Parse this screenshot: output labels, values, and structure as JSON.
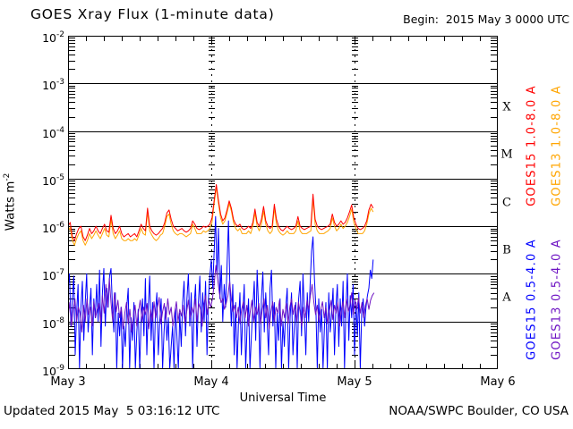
{
  "header": {
    "title": "GOES Xray Flux (1-minute data)",
    "begin": "Begin:  2015 May 3 0000 UTC"
  },
  "footer": {
    "updated": "Updated 2015 May  5 03:16:12 UTC",
    "source": "NOAA/SWPC Boulder, CO USA"
  },
  "chart_data": {
    "type": "line",
    "title": "GOES Xray Flux (1-minute data)",
    "xlabel": "Universal Time",
    "ylabel_base": "Watts m",
    "ylabel_exp": "-2",
    "y_scale": "log",
    "y_range": [
      1e-09,
      0.01
    ],
    "y_tick_exponents": [
      "-2",
      "-3",
      "-4",
      "-5",
      "-6",
      "-7",
      "-8",
      "-9"
    ],
    "x_range_days": 3,
    "x_tick_labels": [
      "May 3",
      "May 4",
      "May 5",
      "May 6"
    ],
    "x_minor_ticks_per_day": 8,
    "grid": {
      "horizontal": "solid-per-decade",
      "vertical": "dotted-per-day"
    },
    "flare_classes": [
      {
        "letter": "X",
        "band_top_exponent": -3
      },
      {
        "letter": "M",
        "band_top_exponent": -4
      },
      {
        "letter": "C",
        "band_top_exponent": -5
      },
      {
        "letter": "B",
        "band_top_exponent": -6
      },
      {
        "letter": "A",
        "band_top_exponent": -7
      }
    ],
    "legend": [
      {
        "label": "GOES15 1.0-8.0 A",
        "color": "#ff0000"
      },
      {
        "label": "GOES13 1.0-8.0 A",
        "color": "#ffa500"
      },
      {
        "label": "GOES15 0.5-4.0 A",
        "color": "#0000ff"
      },
      {
        "label": "GOES13 0.5-4.0 A",
        "color": "#6e14c3"
      }
    ],
    "series": [
      {
        "name": "GOES15 1.0-8.0 A",
        "color": "#ff0000",
        "t0": 0,
        "dt": 0.015,
        "values": [
          1e-06,
          1.2e-06,
          6e-07,
          5e-07,
          7e-07,
          9e-07,
          1e-06,
          6e-07,
          5e-07,
          6.5e-07,
          9e-07,
          7e-07,
          8e-07,
          1e-06,
          8e-07,
          7e-07,
          9e-07,
          1.1e-06,
          8e-07,
          7.5e-07,
          1.7e-06,
          9e-07,
          7e-07,
          8e-07,
          1e-06,
          7e-07,
          6e-07,
          6.5e-07,
          7e-07,
          6e-07,
          6.5e-07,
          7e-07,
          6e-07,
          8e-07,
          1.1e-06,
          9e-07,
          8e-07,
          2.4e-06,
          1e-06,
          8e-07,
          7e-07,
          6.5e-07,
          7e-07,
          8e-07,
          9e-07,
          1.2e-06,
          1.9e-06,
          2.2e-06,
          1.4e-06,
          1e-06,
          9e-07,
          8e-07,
          8.5e-07,
          9e-07,
          8e-07,
          7.5e-07,
          8e-07,
          9e-07,
          1.3e-06,
          1.1e-06,
          9e-07,
          8.5e-07,
          9e-07,
          1e-06,
          9.5e-07,
          1e-06,
          1.1e-06,
          1.5e-06,
          3.5e-06,
          7.5e-06,
          3.5e-06,
          1.8e-06,
          1.3e-06,
          1.5e-06,
          2.2e-06,
          3.4e-06,
          2.4e-06,
          1.4e-06,
          1.1e-06,
          1e-06,
          1.1e-06,
          9e-07,
          8.5e-07,
          9e-07,
          1e-06,
          9e-07,
          1.2e-06,
          2.3e-06,
          1.2e-06,
          1e-06,
          1.4e-06,
          2.6e-06,
          1.3e-06,
          1e-06,
          9e-07,
          1e-06,
          2.9e-06,
          1.4e-06,
          1e-06,
          8.5e-07,
          8e-07,
          9e-07,
          1e-06,
          9e-07,
          8.5e-07,
          9e-07,
          1e-06,
          1.6e-06,
          1e-06,
          9e-07,
          8.5e-07,
          9e-07,
          9.5e-07,
          1e-06,
          4.7e-06,
          1.4e-06,
          1e-06,
          9e-07,
          8.5e-07,
          9e-07,
          9.5e-07,
          1e-06,
          1.1e-06,
          1.8e-06,
          1.2e-06,
          1e-06,
          1.1e-06,
          1.3e-06,
          1.1e-06,
          1.2e-06,
          1.5e-06,
          2e-06,
          2.8e-06,
          1.5e-06,
          1.1e-06,
          9e-07,
          8.5e-07,
          9e-07,
          1e-06,
          1.3e-06,
          2.2e-06,
          2.9e-06,
          2.4e-06
        ]
      },
      {
        "name": "GOES13 1.0-8.0 A",
        "color": "#ffa500",
        "t0": 0,
        "dt": 0.015,
        "values": [
          8e-07,
          9.5e-07,
          5e-07,
          4e-07,
          5.5e-07,
          7e-07,
          8e-07,
          5e-07,
          4e-07,
          5e-07,
          7e-07,
          5.5e-07,
          6.5e-07,
          8e-07,
          6.5e-07,
          5.5e-07,
          7e-07,
          9e-07,
          6.5e-07,
          6e-07,
          1.4e-06,
          7e-07,
          5.5e-07,
          6.5e-07,
          8e-07,
          5.5e-07,
          5e-07,
          5e-07,
          5.5e-07,
          5e-07,
          5e-07,
          5.5e-07,
          5e-07,
          6.5e-07,
          9e-07,
          7e-07,
          6.5e-07,
          2e-06,
          8e-07,
          6.5e-07,
          5.5e-07,
          5e-07,
          5.5e-07,
          6.5e-07,
          7e-07,
          1e-06,
          1.6e-06,
          1.8e-06,
          1.1e-06,
          8e-07,
          7e-07,
          6.5e-07,
          7e-07,
          7e-07,
          6.5e-07,
          6e-07,
          6.5e-07,
          7e-07,
          1.1e-06,
          9e-07,
          7e-07,
          7e-07,
          7e-07,
          8e-07,
          7.5e-07,
          8e-07,
          9e-07,
          1.2e-06,
          3e-06,
          6.6e-06,
          3e-06,
          1.5e-06,
          1.1e-06,
          1.3e-06,
          1.9e-06,
          3e-06,
          2.1e-06,
          1.2e-06,
          9e-07,
          8e-07,
          9e-07,
          7e-07,
          7e-07,
          7e-07,
          8e-07,
          7e-07,
          1e-06,
          1.9e-06,
          1e-06,
          8e-07,
          1.1e-06,
          2.1e-06,
          1.1e-06,
          8e-07,
          7e-07,
          8e-07,
          2.4e-06,
          1.1e-06,
          8e-07,
          7e-07,
          6.5e-07,
          7e-07,
          8e-07,
          7e-07,
          7e-07,
          7e-07,
          8e-07,
          1.3e-06,
          8e-07,
          7e-07,
          7e-07,
          7e-07,
          7.5e-07,
          8e-07,
          3.8e-06,
          1.1e-06,
          8e-07,
          7e-07,
          7e-07,
          7e-07,
          7.5e-07,
          8e-07,
          9e-07,
          1.5e-06,
          1e-06,
          8e-07,
          9e-07,
          1.1e-06,
          9e-07,
          1e-06,
          1.2e-06,
          1.6e-06,
          2.3e-06,
          1.2e-06,
          9e-07,
          7e-07,
          7e-07,
          7e-07,
          8e-07,
          1.1e-06,
          1.8e-06,
          2.4e-06,
          2e-06
        ]
      },
      {
        "name": "GOES15 0.5-4.0 A",
        "color": "#0000ff",
        "t0": 0,
        "dt": 0.01,
        "values": [
          5e-08,
          1e-07,
          8e-09,
          3e-08,
          9e-08,
          2e-09,
          1.5e-08,
          6e-08,
          1e-09,
          2e-08,
          7e-08,
          4e-09,
          2.5e-08,
          1e-07,
          6e-09,
          1.8e-08,
          5e-08,
          2e-09,
          3e-08,
          1.2e-08,
          6e-08,
          1e-08,
          1.2e-07,
          3e-09,
          4e-08,
          1.3e-07,
          8e-09,
          5e-08,
          2e-08,
          9e-08,
          1.3e-07,
          2e-08,
          6e-09,
          4e-08,
          1e-09,
          1.5e-08,
          5e-09,
          2e-08,
          1e-09,
          8e-09,
          3e-09,
          2e-08,
          5e-08,
          1e-09,
          1.2e-08,
          4e-09,
          2.5e-08,
          1e-09,
          6e-09,
          1.8e-08,
          1e-09,
          1e-08,
          3e-08,
          5e-09,
          8e-08,
          2e-09,
          2e-08,
          9e-08,
          4e-09,
          2.5e-08,
          1e-09,
          1.5e-08,
          4e-08,
          2e-09,
          1e-08,
          3e-08,
          1e-09,
          6e-09,
          2e-08,
          4e-09,
          1.2e-08,
          1e-09,
          3e-09,
          8e-09,
          1e-09,
          2e-08,
          5e-09,
          1e-09,
          1.5e-08,
          3e-09,
          2.5e-08,
          7e-08,
          5e-09,
          3e-08,
          1e-07,
          8e-09,
          4e-08,
          1e-09,
          2e-08,
          6e-08,
          3e-09,
          2.5e-08,
          9e-08,
          6e-09,
          4e-08,
          1e-08,
          7e-08,
          2e-09,
          3e-08,
          9e-08,
          2e-07,
          5e-08,
          3e-07,
          1.6e-06,
          1e-07,
          9e-07,
          3e-08,
          1.5e-07,
          1e-08,
          6e-08,
          2e-08,
          1.5e-07,
          1.3e-06,
          5e-08,
          8e-09,
          6e-08,
          2e-09,
          2.5e-08,
          1e-09,
          1e-08,
          4e-08,
          2e-09,
          1.5e-08,
          6e-08,
          1e-09,
          8e-09,
          3e-08,
          1e-09,
          5e-09,
          2e-08,
          7e-08,
          4e-09,
          1.2e-07,
          2e-08,
          1e-09,
          3e-08,
          1.1e-07,
          6e-09,
          4e-08,
          1e-08,
          2e-09,
          5e-08,
          1.2e-07,
          8e-09,
          2.5e-08,
          1e-09,
          1.5e-08,
          4e-09,
          3e-08,
          1e-09,
          1e-08,
          3e-09,
          2e-08,
          5e-08,
          1e-09,
          1.2e-08,
          4e-08,
          2e-09,
          8e-09,
          2.5e-08,
          1e-09,
          3e-08,
          7e-08,
          5e-09,
          1e-07,
          1.5e-08,
          2e-09,
          4e-08,
          1e-08,
          6e-08,
          3e-07,
          6e-07,
          8e-08,
          2e-08,
          1e-09,
          3e-08,
          6e-09,
          1.8e-08,
          1e-09,
          8e-09,
          2.5e-08,
          1e-09,
          4e-08,
          6e-09,
          1.5e-08,
          5e-08,
          2e-09,
          2e-08,
          6e-08,
          3e-09,
          3e-08,
          8e-09,
          7e-08,
          1e-09,
          2e-08,
          1e-07,
          4e-09,
          3.5e-08,
          1.2e-08,
          6e-08,
          2e-09,
          2.5e-08,
          5e-09,
          4e-08,
          1e-09,
          1.5e-08,
          3e-08,
          8e-09,
          2e-08,
          3.5e-08,
          5e-08,
          1.2e-07,
          8e-08,
          2e-07
        ]
      },
      {
        "name": "GOES13 0.5-4.0 A",
        "color": "#6e14c3",
        "t0": 0,
        "dt": 0.012,
        "values": [
          1.2e-08,
          2.5e-08,
          8e-09,
          1.8e-08,
          3e-08,
          1e-08,
          2e-08,
          1.5e-08,
          6e-09,
          2.2e-08,
          1e-08,
          3e-08,
          1.4e-08,
          2e-08,
          8e-09,
          2.6e-08,
          1.2e-08,
          1.8e-08,
          2.4e-08,
          9e-09,
          3.5e-08,
          1.5e-08,
          6e-08,
          2e-08,
          8e-08,
          2.5e-08,
          1e-08,
          4e-08,
          1.6e-08,
          2.8e-08,
          1.2e-08,
          2e-08,
          7e-09,
          1.5e-08,
          2.5e-08,
          9e-09,
          1.8e-08,
          6e-09,
          1.2e-08,
          2.2e-08,
          8e-09,
          1.6e-08,
          2.8e-08,
          1e-08,
          2e-08,
          1.4e-08,
          2.4e-08,
          7e-09,
          1.8e-08,
          1e-08,
          2.6e-08,
          1.2e-08,
          2e-08,
          3.2e-08,
          9e-09,
          1.6e-08,
          2.4e-08,
          1.1e-08,
          3e-08,
          1.4e-08,
          2e-08,
          8e-09,
          1.5e-08,
          2.6e-08,
          1e-08,
          1.8e-08,
          1.3e-08,
          2.2e-08,
          9e-09,
          1.6e-08,
          2.8e-08,
          1.2e-08,
          2e-08,
          1.5e-08,
          3e-08,
          1e-08,
          2.4e-08,
          1.8e-08,
          8e-09,
          2.2e-08,
          3.5e-08,
          1.4e-08,
          2.8e-08,
          2e-08,
          3e-08,
          6e-08,
          1.5e-07,
          8e-08,
          4e-08,
          2.5e-08,
          3e-08,
          1.8e-08,
          2.4e-08,
          3.5e-08,
          7e-08,
          3e-08,
          1.6e-08,
          2.2e-08,
          1.2e-08,
          2e-08,
          9e-09,
          1.8e-08,
          2.6e-08,
          1.2e-08,
          2.2e-08,
          8e-09,
          1.6e-08,
          2.8e-08,
          1e-08,
          2e-08,
          1.4e-08,
          2.4e-08,
          9e-09,
          1.8e-08,
          3e-08,
          1.2e-08,
          2.2e-08,
          7e-09,
          1.6e-08,
          2.6e-08,
          1e-08,
          2e-08,
          1.5e-08,
          2.8e-08,
          8e-09,
          1.8e-08,
          1.2e-08,
          2.4e-08,
          9e-09,
          2e-08,
          3e-08,
          1.4e-08,
          2.2e-08,
          1e-08,
          2.6e-08,
          1.6e-08,
          8e-09,
          2e-08,
          1.2e-08,
          2.8e-08,
          1.8e-08,
          3.5e-08,
          6e-08,
          2.5e-08,
          1.4e-08,
          2.2e-08,
          1e-08,
          1.8e-08,
          2.6e-08,
          1.2e-08,
          2e-08,
          9e-09,
          1.6e-08,
          2.8e-08,
          1.1e-08,
          2.2e-08,
          1.5e-08,
          2.5e-08,
          8e-09,
          1.8e-08,
          2.6e-08,
          1.2e-08,
          3e-08,
          1.6e-08,
          2.2e-08,
          4e-08,
          1.4e-08,
          2.8e-08,
          1.8e-08,
          3.2e-08,
          1.5e-08,
          2.5e-08,
          1.2e-08,
          2.2e-08,
          3e-08,
          1.8e-08,
          2.8e-08,
          3.5e-08,
          4e-08
        ]
      }
    ]
  }
}
